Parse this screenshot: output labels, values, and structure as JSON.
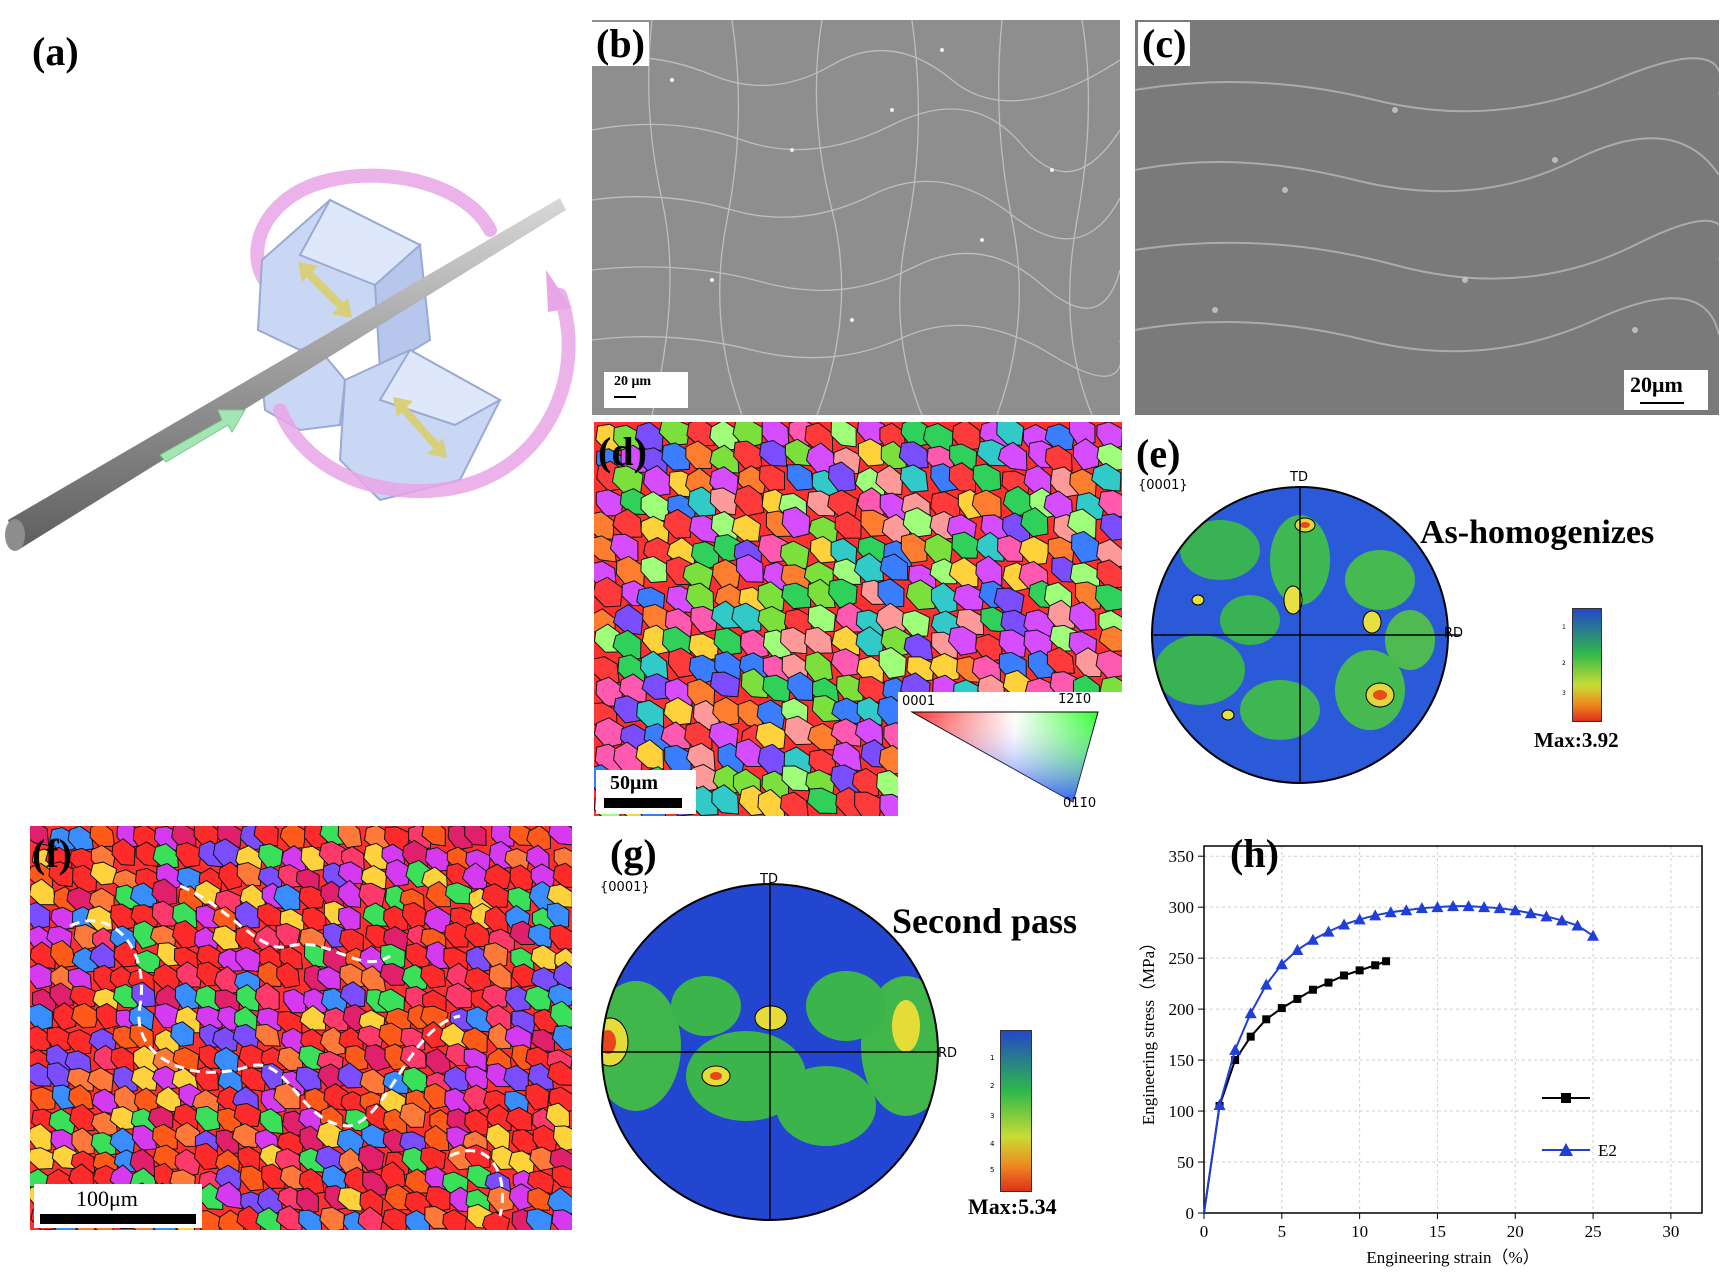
{
  "panel_labels": {
    "a": "(a)",
    "b": "(b)",
    "c": "(c)",
    "d": "(d)",
    "e": "(e)",
    "f": "(f)",
    "g": "(g)",
    "h": "(h)"
  },
  "scale_bars": {
    "b": "20 μm",
    "c": "20μm",
    "d": "50μm",
    "f": "100μm"
  },
  "ipf_key": {
    "top_left": "0001",
    "top_right": "1̄21̄0",
    "bottom": "011̄0"
  },
  "pole_e": {
    "family": "{0001}",
    "td": "TD",
    "rd": "RD",
    "title": "As-homogenizes",
    "max": "Max:3.92"
  },
  "pole_g": {
    "family": "{0001}",
    "td": "TD",
    "rd": "RD",
    "title": "Second pass",
    "max": "Max:5.34"
  },
  "colorbar_e_ticks": [
    "1",
    "2",
    "3"
  ],
  "colorbar_g_ticks": [
    "1",
    "2",
    "3",
    "4",
    "5"
  ],
  "chart_data": {
    "type": "line",
    "xlabel": "Engineering strain（%）",
    "ylabel": "Engineering stress（MPa）",
    "xlim": [
      0,
      32
    ],
    "ylim": [
      0,
      360
    ],
    "xticks": [
      0,
      5,
      10,
      15,
      20,
      25,
      30
    ],
    "yticks": [
      0,
      50,
      100,
      150,
      200,
      250,
      300,
      350
    ],
    "grid": true,
    "legend_position": "right",
    "series": [
      {
        "name": "",
        "marker": "square",
        "color": "#000000",
        "x": [
          0,
          1,
          2,
          3,
          4,
          5,
          6,
          7,
          8,
          9,
          10,
          11,
          11.7
        ],
        "y": [
          0,
          105,
          150,
          173,
          190,
          201,
          210,
          219,
          226,
          233,
          238,
          243,
          247
        ]
      },
      {
        "name": "E2",
        "marker": "triangle",
        "color": "#1f3fd6",
        "x": [
          0,
          1,
          2,
          3,
          4,
          5,
          6,
          7,
          8,
          9,
          10,
          11,
          12,
          13,
          14,
          15,
          16,
          17,
          18,
          19,
          20,
          21,
          22,
          23,
          24,
          25
        ],
        "y": [
          0,
          106,
          160,
          196,
          224,
          244,
          258,
          268,
          276,
          283,
          288,
          292,
          295,
          297,
          299,
          300,
          301,
          301,
          300,
          299,
          297,
          294,
          291,
          287,
          282,
          272
        ]
      }
    ]
  }
}
